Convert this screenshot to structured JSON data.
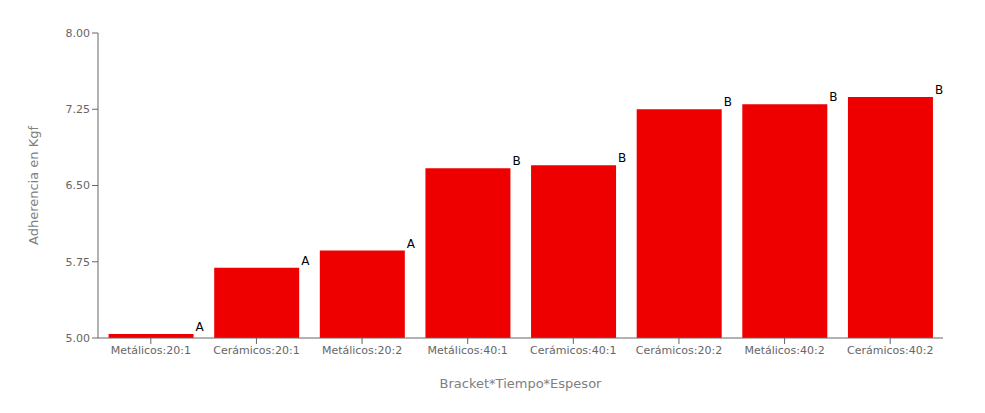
{
  "chart_data": {
    "type": "bar",
    "categories": [
      "Metálicos:20:1",
      "Cerámicos:20:1",
      "Metálicos:20:2",
      "Metálicos:40:1",
      "Cerámicos:40:1",
      "Cerámicos:20:2",
      "Metálicos:40:2",
      "Cerámicos:40:2"
    ],
    "values": [
      5.04,
      5.69,
      5.86,
      6.67,
      6.7,
      7.25,
      7.3,
      7.37
    ],
    "annotations": [
      "A",
      "A",
      "A",
      "B",
      "B",
      "B",
      "B",
      "B"
    ],
    "color": "#EE0000",
    "ylim": [
      5.0,
      8.0
    ],
    "yticks": [
      {
        "value": 5.0,
        "label": "5.00"
      },
      {
        "value": 5.75,
        "label": "5.75"
      },
      {
        "value": 6.5,
        "label": "6.50"
      },
      {
        "value": 7.25,
        "label": "7.25"
      },
      {
        "value": 8.0,
        "label": "8.00"
      }
    ],
    "ylabel": "Adherencia en Kgf",
    "xlabel": "Bracket*Tiempo*Espesor",
    "grid": false
  }
}
